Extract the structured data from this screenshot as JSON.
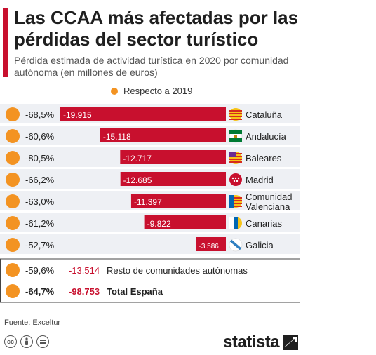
{
  "title": "Las CCAA más afectadas por las pérdidas del sector turístico",
  "subtitle": "Pérdida estimada de actividad turística en 2020 por comunidad autónoma (en millones de euros)",
  "legend_label": "Respecto a 2019",
  "source": "Fuente: Exceltur",
  "brand": "statista",
  "colors": {
    "bar": "#c8102e",
    "dot": "#f39322",
    "row_bg": "#eef0f4",
    "accent": "#c8102e"
  },
  "chart_data": {
    "type": "bar",
    "orientation": "horizontal",
    "categories": [
      "Cataluña",
      "Andalucía",
      "Baleares",
      "Madrid",
      "Comunidad Valenciana",
      "Canarias",
      "Galicia"
    ],
    "values": [
      -19915,
      -15118,
      -12717,
      -12685,
      -11397,
      -9822,
      -3586
    ],
    "value_labels": [
      "-19.915",
      "-15.118",
      "-12.717",
      "-12.685",
      "-11.397",
      "-9.822",
      "-3.586"
    ],
    "percent_labels": [
      "-68,5%",
      "-60,6%",
      "-80,5%",
      "-66,2%",
      "-63,0%",
      "-61,2%",
      "-52,7%"
    ],
    "flag_icons": [
      "cataluna-flag-icon",
      "andalucia-flag-icon",
      "baleares-flag-icon",
      "madrid-flag-icon",
      "valenciana-flag-icon",
      "canarias-flag-icon",
      "galicia-flag-icon"
    ],
    "summary_rows": [
      {
        "percent": "-59,6%",
        "value": "-13.514",
        "label": "Resto de comunidades autónomas",
        "bold": false
      },
      {
        "percent": "-64,7%",
        "value": "-98.753",
        "label": "Total España",
        "bold": true
      }
    ]
  },
  "license_icons": [
    "cc-icon",
    "by-icon",
    "nd-icon"
  ]
}
